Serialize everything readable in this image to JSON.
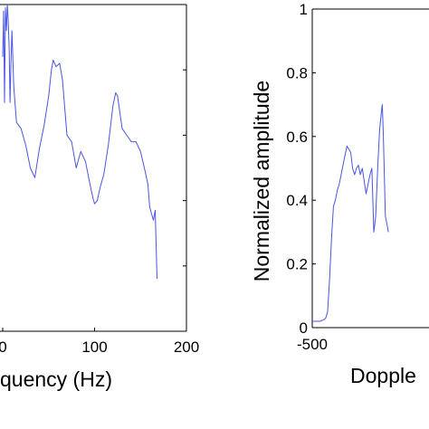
{
  "chart_data": [
    {
      "type": "line",
      "xlabel": "quency (Hz)",
      "ylabel": "",
      "x_ticks": [
        0,
        100,
        200
      ],
      "x_tick_labels": [
        "0",
        "100",
        "200"
      ],
      "xlim": [
        0,
        200
      ],
      "ylim": [
        0,
        1
      ],
      "y_ticks_unlabeled": [
        0.2,
        0.4,
        0.6,
        0.8
      ],
      "grid": false,
      "color": "#4a55e0",
      "x": [
        0,
        1,
        2,
        3,
        4,
        5,
        6,
        7,
        8,
        9,
        10,
        12,
        15,
        20,
        25,
        30,
        35,
        40,
        45,
        50,
        53,
        55,
        58,
        62,
        65,
        70,
        75,
        80,
        85,
        90,
        95,
        98,
        100,
        103,
        106,
        110,
        115,
        120,
        123,
        125,
        127,
        130,
        135,
        140,
        145,
        150,
        155,
        158,
        160,
        162,
        164,
        166,
        168
      ],
      "y": [
        0.84,
        0.98,
        0.7,
        0.99,
        0.92,
        1.0,
        0.95,
        0.87,
        0.7,
        0.82,
        0.92,
        0.75,
        0.64,
        0.62,
        0.57,
        0.5,
        0.47,
        0.56,
        0.63,
        0.72,
        0.8,
        0.83,
        0.81,
        0.82,
        0.77,
        0.6,
        0.58,
        0.5,
        0.55,
        0.52,
        0.45,
        0.41,
        0.39,
        0.4,
        0.44,
        0.48,
        0.57,
        0.69,
        0.73,
        0.72,
        0.68,
        0.62,
        0.6,
        0.58,
        0.58,
        0.55,
        0.49,
        0.45,
        0.38,
        0.36,
        0.34,
        0.37,
        0.16
      ]
    },
    {
      "type": "line",
      "ylabel": "Normalized amplitude",
      "xlabel": "Dopple",
      "y_ticks": [
        0,
        0.2,
        0.4,
        0.6,
        0.8,
        1
      ],
      "y_tick_labels": [
        "0",
        "0.2",
        "0.4",
        "0.6",
        "0.8",
        "1"
      ],
      "x_ticks": [
        -500
      ],
      "x_tick_labels": [
        "-500"
      ],
      "xlim": [
        -500,
        -100
      ],
      "ylim": [
        0,
        1
      ],
      "grid": false,
      "color": "#4a55e0",
      "x": [
        -500,
        -490,
        -480,
        -470,
        -465,
        -460,
        -455,
        -450,
        -445,
        -440,
        -435,
        -430,
        -425,
        -420,
        -410,
        -400,
        -395,
        -390,
        -385,
        -380,
        -375,
        -370,
        -365,
        -360,
        -355,
        -350,
        -345,
        -340,
        -335,
        -330,
        -325,
        -320,
        -318,
        -315,
        -312,
        -310,
        -305,
        -302
      ],
      "y": [
        0.02,
        0.02,
        0.02,
        0.025,
        0.03,
        0.05,
        0.15,
        0.28,
        0.38,
        0.4,
        0.43,
        0.45,
        0.48,
        0.51,
        0.57,
        0.55,
        0.5,
        0.48,
        0.5,
        0.51,
        0.48,
        0.5,
        0.46,
        0.42,
        0.45,
        0.48,
        0.5,
        0.3,
        0.35,
        0.5,
        0.62,
        0.68,
        0.7,
        0.6,
        0.45,
        0.35,
        0.32,
        0.3
      ]
    }
  ]
}
